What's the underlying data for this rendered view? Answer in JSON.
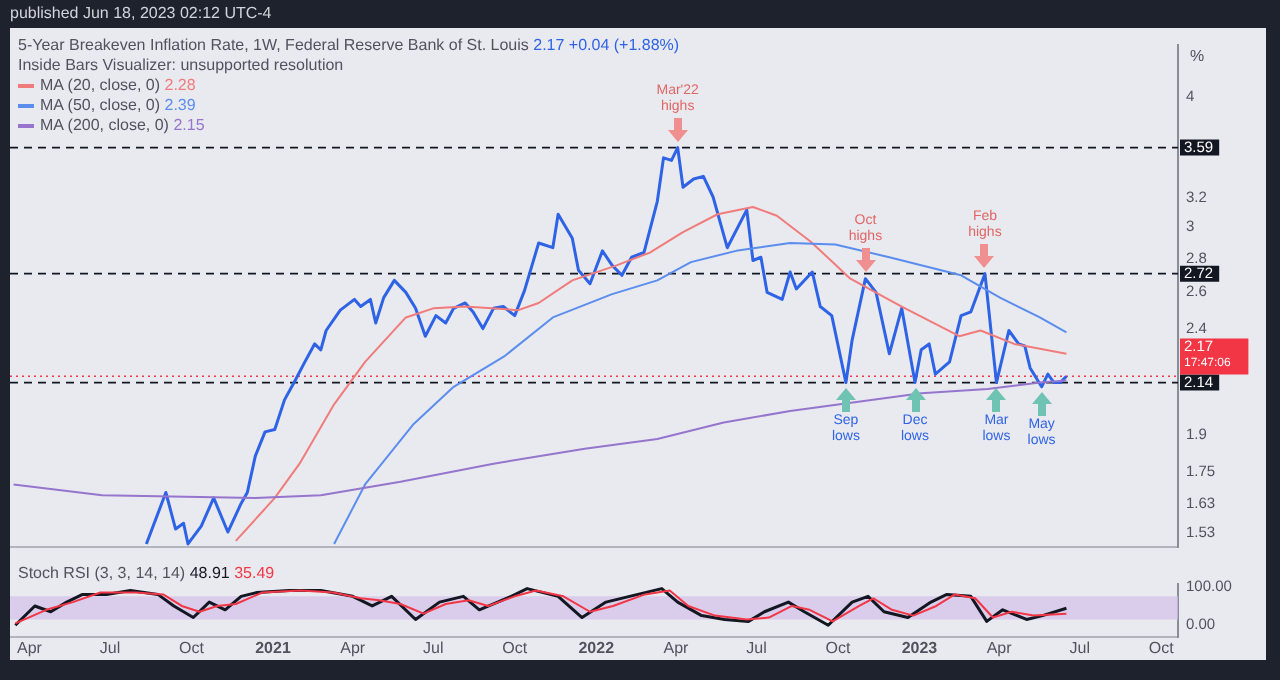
{
  "chart_data": [
    {
      "type": "line",
      "title": "5-Year Breakeven Inflation Rate, 1W, Federal Reserve Bank of St. Louis",
      "subtitle": "2.17 +0.04 (+1.88%)",
      "ylabel": "%",
      "log": "y",
      "grid": false,
      "legend": "top left",
      "tick_labels": "y",
      "marker": "none",
      "xlim": [
        "2020-03-10",
        "2023-10-20"
      ],
      "ylim": [
        1.49,
        4.5
      ],
      "yticks": [
        1.53,
        1.63,
        1.75,
        1.9,
        2.4,
        2.6,
        2.8,
        3,
        3.2,
        4
      ],
      "ref_lines": [
        {
          "axis": "y",
          "value": 3.59,
          "label": "3.59",
          "color": "#131722",
          "line_style": "dashed"
        },
        {
          "axis": "y",
          "value": 2.72,
          "label": "2.72",
          "color": "#131722",
          "line_style": "dashed"
        },
        {
          "axis": "y",
          "value": 2.14,
          "label": "2.14",
          "color": "#131722",
          "line_style": "dashed"
        },
        {
          "axis": "y",
          "value": 2.17,
          "label": "2.17\n17:47:06",
          "color": "#f23645",
          "line_style": "dotted"
        }
      ],
      "annotations": [
        "published Jun 18, 2023 02:12 UTC-4",
        "Inside Bars Visualizer: unsupported resolution",
        {
          "text": "Mar'22 highs",
          "x": "2022-04-03",
          "y": 3.59
        },
        {
          "text": "Oct highs",
          "x": "2022-11-01",
          "y": 2.69
        },
        {
          "text": "Feb highs",
          "x": "2023-03-16",
          "y": 2.72
        },
        {
          "text": "Sep lows",
          "x": "2022-10-10",
          "y": 2.14
        },
        {
          "text": "Dec lows",
          "x": "2022-12-27",
          "y": 2.14
        },
        {
          "text": "Mar lows",
          "x": "2023-03-29",
          "y": 2.14
        },
        {
          "text": "May lows",
          "x": "2023-05-19",
          "y": 2.12
        }
      ],
      "series": [
        {
          "color": "#2f63e6",
          "x": [
            "2020-08-11",
            "2020-09-02",
            "2020-09-13",
            "2020-09-22",
            "2020-09-27",
            "2020-10-12",
            "2020-10-26",
            "2020-11-11",
            "2020-11-26",
            "2020-12-03",
            "2020-12-12",
            "2020-12-23",
            "2021-01-03",
            "2021-01-14",
            "2021-01-26",
            "2021-02-06",
            "2021-02-17",
            "2021-02-24",
            "2021-03-02",
            "2021-03-18",
            "2021-04-03",
            "2021-04-10",
            "2021-04-21",
            "2021-04-27",
            "2021-05-06",
            "2021-05-18",
            "2021-05-31",
            "2021-06-11",
            "2021-06-22",
            "2021-07-04",
            "2021-07-15",
            "2021-07-24",
            "2021-08-06",
            "2021-08-15",
            "2021-08-26",
            "2021-09-07",
            "2021-09-18",
            "2021-10-01",
            "2021-10-12",
            "2021-10-28",
            "2021-11-13",
            "2021-11-19",
            "2021-12-05",
            "2021-12-12",
            "2021-12-25",
            "2022-01-08",
            "2022-01-19",
            "2022-01-30",
            "2022-02-10",
            "2022-02-24",
            "2022-03-11",
            "2022-03-18",
            "2022-03-27",
            "2022-04-03",
            "2022-04-09",
            "2022-04-21",
            "2022-05-02",
            "2022-05-13",
            "2022-05-29",
            "2022-06-20",
            "2022-06-27",
            "2022-07-06",
            "2022-07-13",
            "2022-07-30",
            "2022-08-08",
            "2022-08-15",
            "2022-09-02",
            "2022-09-11",
            "2022-09-24",
            "2022-10-10",
            "2022-10-17",
            "2022-11-01",
            "2022-11-13",
            "2022-11-28",
            "2022-12-12",
            "2022-12-27",
            "2023-01-03",
            "2023-01-12",
            "2023-01-19",
            "2023-02-04",
            "2023-02-17",
            "2023-02-28",
            "2023-03-16",
            "2023-03-29",
            "2023-04-12",
            "2023-04-23",
            "2023-04-30",
            "2023-05-06",
            "2023-05-19",
            "2023-05-26",
            "2023-06-02",
            "2023-06-09",
            "2023-06-16"
          ],
          "values": [
            1.5,
            1.68,
            1.55,
            1.57,
            1.5,
            1.56,
            1.66,
            1.54,
            1.64,
            1.68,
            1.82,
            1.92,
            1.93,
            2.06,
            2.15,
            2.24,
            2.33,
            2.3,
            2.4,
            2.51,
            2.57,
            2.53,
            2.57,
            2.44,
            2.58,
            2.68,
            2.61,
            2.52,
            2.37,
            2.48,
            2.44,
            2.52,
            2.55,
            2.5,
            2.41,
            2.52,
            2.53,
            2.48,
            2.62,
            2.91,
            2.88,
            3.1,
            2.94,
            2.74,
            2.66,
            2.86,
            2.77,
            2.71,
            2.82,
            2.85,
            3.19,
            3.51,
            3.49,
            3.59,
            3.29,
            3.35,
            3.37,
            3.22,
            2.88,
            3.13,
            2.8,
            2.82,
            2.61,
            2.57,
            2.73,
            2.63,
            2.73,
            2.53,
            2.48,
            2.14,
            2.35,
            2.69,
            2.61,
            2.28,
            2.52,
            2.14,
            2.3,
            2.33,
            2.18,
            2.24,
            2.48,
            2.5,
            2.72,
            2.14,
            2.4,
            2.33,
            2.32,
            2.21,
            2.12,
            2.18,
            2.14,
            2.14,
            2.17
          ]
        },
        {
          "name": "MA (20, close, 0) 2.28",
          "color": "#f07b7b",
          "x": [
            "2020-11-20",
            "2021-01-03",
            "2021-01-31",
            "2021-03-11",
            "2021-04-15",
            "2021-05-31",
            "2021-07-01",
            "2021-08-06",
            "2021-10-05",
            "2021-10-28",
            "2021-12-05",
            "2022-01-24",
            "2022-03-03",
            "2022-04-09",
            "2022-05-18",
            "2022-06-27",
            "2022-07-24",
            "2022-08-31",
            "2022-10-15",
            "2022-12-12",
            "2023-02-15",
            "2023-03-11",
            "2023-04-18",
            "2023-06-16"
          ],
          "values": [
            1.51,
            1.66,
            1.79,
            2.04,
            2.24,
            2.47,
            2.52,
            2.53,
            2.51,
            2.55,
            2.68,
            2.77,
            2.85,
            2.98,
            3.1,
            3.15,
            3.09,
            2.92,
            2.69,
            2.53,
            2.37,
            2.4,
            2.33,
            2.28
          ]
        },
        {
          "name": "MA (50, close, 0) 2.39",
          "color": "#5b8def",
          "x": [
            "2021-03-11",
            "2021-04-15",
            "2021-06-08",
            "2021-07-24",
            "2021-09-20",
            "2021-11-13",
            "2022-01-19",
            "2022-03-11",
            "2022-04-18",
            "2022-06-08",
            "2022-08-08",
            "2022-09-28",
            "2022-11-28",
            "2023-02-17",
            "2023-04-02",
            "2023-05-17",
            "2023-06-16"
          ],
          "values": [
            1.5,
            1.71,
            1.95,
            2.12,
            2.27,
            2.47,
            2.6,
            2.68,
            2.79,
            2.86,
            2.91,
            2.9,
            2.82,
            2.71,
            2.58,
            2.47,
            2.39
          ]
        },
        {
          "name": "MA (200, close, 0) 2.15",
          "color": "#9575cd",
          "x": [
            "2020-03-14",
            "2020-06-22",
            "2020-12-12",
            "2021-02-24",
            "2021-05-25",
            "2021-09-07",
            "2021-12-19",
            "2022-03-11",
            "2022-05-25",
            "2022-08-08",
            "2022-10-22",
            "2023-01-03",
            "2023-03-19",
            "2023-05-17",
            "2023-06-16"
          ],
          "values": [
            1.71,
            1.67,
            1.66,
            1.67,
            1.72,
            1.79,
            1.85,
            1.89,
            1.96,
            2.01,
            2.05,
            2.09,
            2.11,
            2.14,
            2.15
          ]
        }
      ]
    },
    {
      "type": "line",
      "title": "Stoch RSI (3, 3, 14, 14)",
      "grid": false,
      "legend": "top",
      "marker": "none",
      "xlim": [
        "2020-03-10",
        "2023-10-20"
      ],
      "xticks": [
        {
          "value": "2020-04",
          "label": "Apr"
        },
        {
          "value": "2020-07",
          "label": "Jul"
        },
        {
          "value": "2020-10",
          "label": "Oct"
        },
        {
          "value": "2021-01",
          "label": "2021"
        },
        {
          "value": "2021-04",
          "label": "Apr"
        },
        {
          "value": "2021-07",
          "label": "Jul"
        },
        {
          "value": "2021-10",
          "label": "Oct"
        },
        {
          "value": "2022-01",
          "label": "2022"
        },
        {
          "value": "2022-04",
          "label": "Apr"
        },
        {
          "value": "2022-07",
          "label": "Jul"
        },
        {
          "value": "2022-10",
          "label": "Oct"
        },
        {
          "value": "2023-01",
          "label": "2023"
        },
        {
          "value": "2023-04",
          "label": "Apr"
        },
        {
          "value": "2023-07",
          "label": "Jul"
        },
        {
          "value": "2023-10",
          "label": "Oct"
        }
      ],
      "ylim": [
        -25,
        112
      ],
      "yticks": [
        {
          "value": 0,
          "label": "0.00"
        },
        {
          "value": 100,
          "label": "100.00"
        }
      ],
      "bands": [
        {
          "axis": "y",
          "from": 20,
          "to": 80,
          "color": "#d3c1ea"
        }
      ],
      "series": [
        {
          "name": "48.91",
          "color": "#131722",
          "x": [
            "2020-03-16",
            "2020-04-07",
            "2020-04-25",
            "2020-05-13",
            "2020-05-31",
            "2020-06-27",
            "2020-07-24",
            "2020-08-24",
            "2020-09-11",
            "2020-10-03",
            "2020-10-21",
            "2020-11-08",
            "2020-11-26",
            "2020-12-14",
            "2021-01-19",
            "2021-02-24",
            "2021-04-01",
            "2021-04-23",
            "2021-05-15",
            "2021-06-11",
            "2021-07-08",
            "2021-08-04",
            "2021-08-22",
            "2021-09-27",
            "2021-10-15",
            "2021-11-19",
            "2021-12-16",
            "2022-01-12",
            "2022-02-17",
            "2022-03-16",
            "2022-04-03",
            "2022-04-30",
            "2022-05-26",
            "2022-06-22",
            "2022-07-10",
            "2022-08-06",
            "2022-08-24",
            "2022-09-20",
            "2022-10-17",
            "2022-11-04",
            "2022-11-22",
            "2022-12-19",
            "2023-01-14",
            "2023-02-01",
            "2023-02-28",
            "2023-03-18",
            "2023-04-05",
            "2023-05-02",
            "2023-05-20",
            "2023-06-16"
          ],
          "values": [
            5,
            55,
            40,
            65,
            85,
            85,
            95,
            85,
            55,
            25,
            65,
            45,
            80,
            90,
            95,
            95,
            80,
            55,
            80,
            20,
            65,
            80,
            45,
            80,
            100,
            80,
            25,
            65,
            85,
            100,
            65,
            30,
            20,
            15,
            40,
            65,
            40,
            5,
            65,
            80,
            40,
            25,
            65,
            85,
            80,
            15,
            45,
            20,
            30,
            49
          ]
        },
        {
          "name": "35.49",
          "color": "#f23645",
          "x": [
            "2020-03-16",
            "2020-04-20",
            "2020-05-20",
            "2020-06-20",
            "2020-07-30",
            "2020-08-30",
            "2020-09-20",
            "2020-10-10",
            "2020-10-30",
            "2020-11-20",
            "2020-12-20",
            "2021-02-01",
            "2021-03-10",
            "2021-04-10",
            "2021-05-01",
            "2021-05-25",
            "2021-06-20",
            "2021-07-15",
            "2021-08-10",
            "2021-09-01",
            "2021-10-01",
            "2021-10-25",
            "2021-11-25",
            "2021-12-25",
            "2022-01-20",
            "2022-02-25",
            "2022-03-25",
            "2022-04-15",
            "2022-05-15",
            "2022-06-20",
            "2022-07-15",
            "2022-08-10",
            "2022-08-30",
            "2022-09-25",
            "2022-10-25",
            "2022-11-10",
            "2022-12-01",
            "2022-12-25",
            "2023-01-20",
            "2023-02-10",
            "2023-03-05",
            "2023-03-25",
            "2023-04-15",
            "2023-05-10",
            "2023-06-16"
          ],
          "values": [
            10,
            45,
            65,
            90,
            90,
            85,
            55,
            40,
            55,
            60,
            90,
            95,
            90,
            75,
            70,
            60,
            35,
            60,
            70,
            55,
            80,
            95,
            80,
            40,
            55,
            85,
            95,
            55,
            30,
            20,
            25,
            55,
            45,
            15,
            55,
            75,
            45,
            30,
            55,
            85,
            75,
            25,
            40,
            30,
            35
          ]
        }
      ]
    }
  ]
}
